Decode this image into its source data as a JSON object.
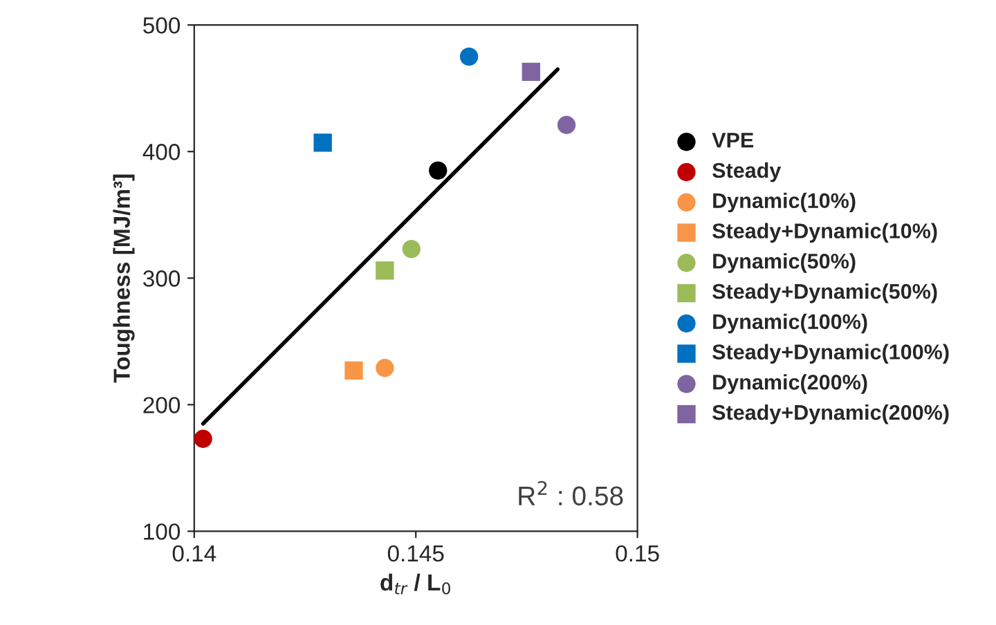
{
  "chart_data": {
    "type": "scatter",
    "xlabel": "d$_{tr}$ / L$_{0}$",
    "ylabel": "Toughness [MJ/m³]",
    "xlim": [
      0.14,
      0.15
    ],
    "ylim": [
      100,
      500
    ],
    "xticks": [
      0.14,
      0.145,
      0.15
    ],
    "yticks": [
      100,
      200,
      300,
      400,
      500
    ],
    "grid": false,
    "legend": "right",
    "annotations": [
      {
        "text": "R$^{2}$ : 0.58"
      }
    ],
    "series": [
      {
        "name": "VPE",
        "color": "#000000",
        "marker": "circle",
        "x": [
          0.1455
        ],
        "values": [
          385
        ]
      },
      {
        "name": "Steady",
        "color": "#c00000",
        "marker": "circle",
        "x": [
          0.1402
        ],
        "values": [
          173
        ]
      },
      {
        "name": "Dynamic(10%)",
        "color": "#f79646",
        "marker": "circle",
        "x": [
          0.1443
        ],
        "values": [
          229
        ]
      },
      {
        "name": "Steady+Dynamic(10%)",
        "color": "#f79646",
        "marker": "square",
        "x": [
          0.1436
        ],
        "values": [
          227
        ]
      },
      {
        "name": "Dynamic(50%)",
        "color": "#9bbb59",
        "marker": "circle",
        "x": [
          0.1449
        ],
        "values": [
          323
        ]
      },
      {
        "name": "Steady+Dynamic(50%)",
        "color": "#9bbb59",
        "marker": "square",
        "x": [
          0.1443
        ],
        "values": [
          306
        ]
      },
      {
        "name": "Dynamic(100%)",
        "color": "#0070c0",
        "marker": "circle",
        "x": [
          0.1462
        ],
        "values": [
          475
        ]
      },
      {
        "name": "Steady+Dynamic(100%)",
        "color": "#0070c0",
        "marker": "square",
        "x": [
          0.1429
        ],
        "values": [
          407
        ]
      },
      {
        "name": "Dynamic(200%)",
        "color": "#8064a2",
        "marker": "circle",
        "x": [
          0.1484
        ],
        "values": [
          421
        ]
      },
      {
        "name": "Steady+Dynamic(200%)",
        "color": "#8064a2",
        "marker": "square",
        "x": [
          0.1476
        ],
        "values": [
          463
        ]
      },
      {
        "type": "line",
        "color": "#000000",
        "marker": "none",
        "x": [
          0.1402,
          0.1482
        ],
        "values": [
          185,
          465
        ]
      }
    ]
  }
}
